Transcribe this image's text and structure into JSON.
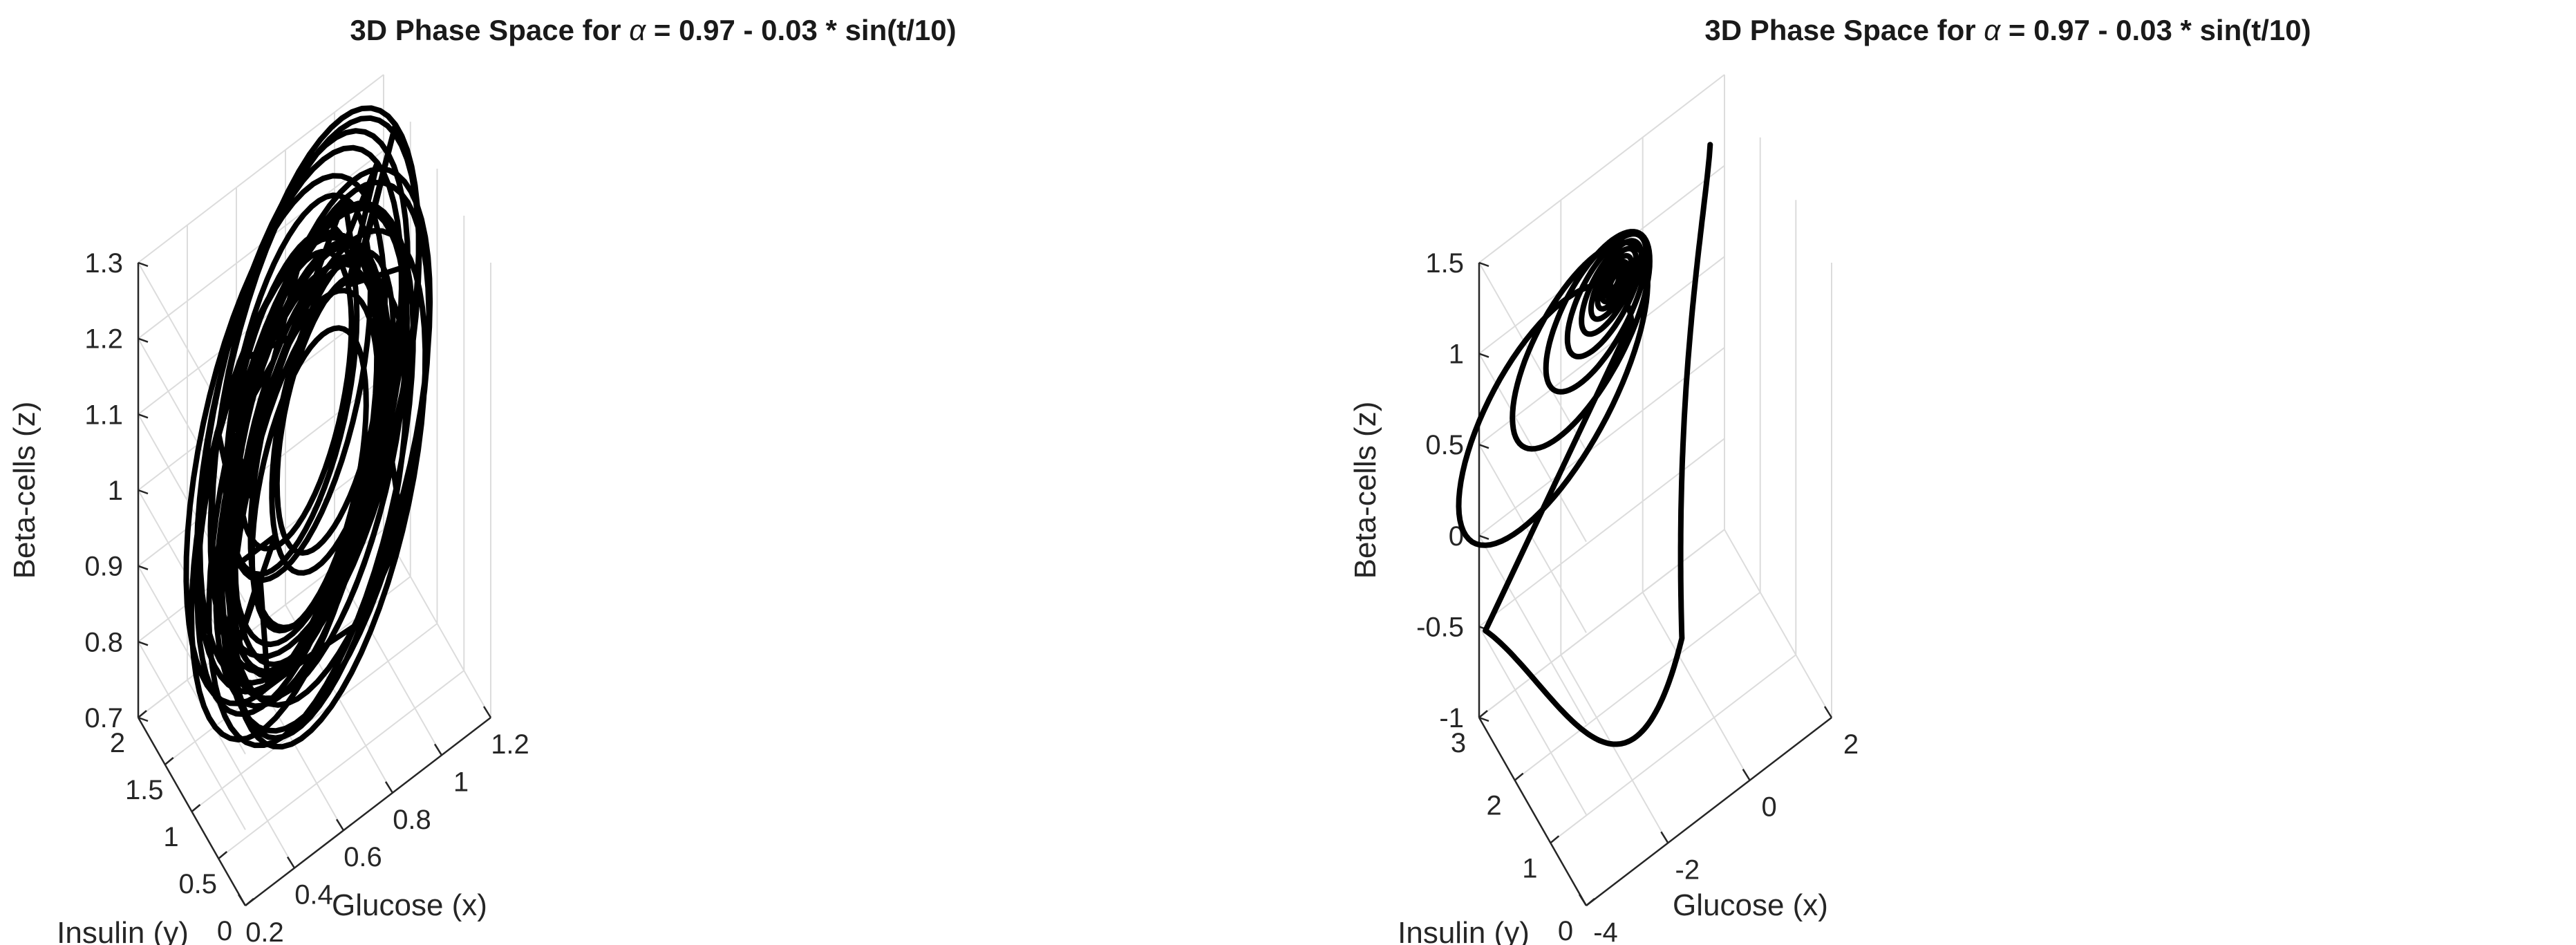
{
  "chart_data": [
    {
      "type": "line",
      "subtype": "3d-phase-space",
      "title_prefix": "3D Phase Space for ",
      "title_symbol": "α",
      "title_suffix": " = 0.97 - 0.03 * sin(t/10)",
      "xlabel": "Glucose (x)",
      "ylabel": "Insulin (y)",
      "zlabel": "Beta-cells (z)",
      "xlim": [
        0.2,
        1.2
      ],
      "ylim": [
        0,
        2
      ],
      "zlim": [
        0.7,
        1.3
      ],
      "xticks": [
        "0.2",
        "0.4",
        "0.6",
        "0.8",
        "1",
        "1.2"
      ],
      "yticks": [
        "0",
        "0.5",
        "1",
        "1.5",
        "2"
      ],
      "zticks": [
        "0.7",
        "0.8",
        "0.9",
        "1",
        "1.1",
        "1.2",
        "1.3"
      ],
      "grid": true,
      "line_color": "#000000",
      "series": [
        {
          "name": "trajectory",
          "description": "chaotic attractor",
          "x": [],
          "y": [],
          "z": []
        }
      ]
    },
    {
      "type": "line",
      "subtype": "3d-phase-space",
      "title_prefix": "3D Phase Space for ",
      "title_symbol": "α",
      "title_suffix": " = 0.97 - 0.03 * sin(t/10)",
      "xlabel": "Glucose (x)",
      "ylabel": "Insulin (y)",
      "zlabel": "Beta-cells (z)",
      "xlim": [
        -4,
        2
      ],
      "ylim": [
        0,
        3
      ],
      "zlim": [
        -1,
        1.5
      ],
      "xticks": [
        "-4",
        "-2",
        "0",
        "2"
      ],
      "yticks": [
        "0",
        "1",
        "2",
        "3"
      ],
      "zticks": [
        "-1",
        "-0.5",
        "0",
        "0.5",
        "1",
        "1.5"
      ],
      "grid": true,
      "line_color": "#000000",
      "series": [
        {
          "name": "trajectory",
          "description": "spiral converging to fixed point",
          "x": [],
          "y": [],
          "z": []
        }
      ]
    }
  ]
}
